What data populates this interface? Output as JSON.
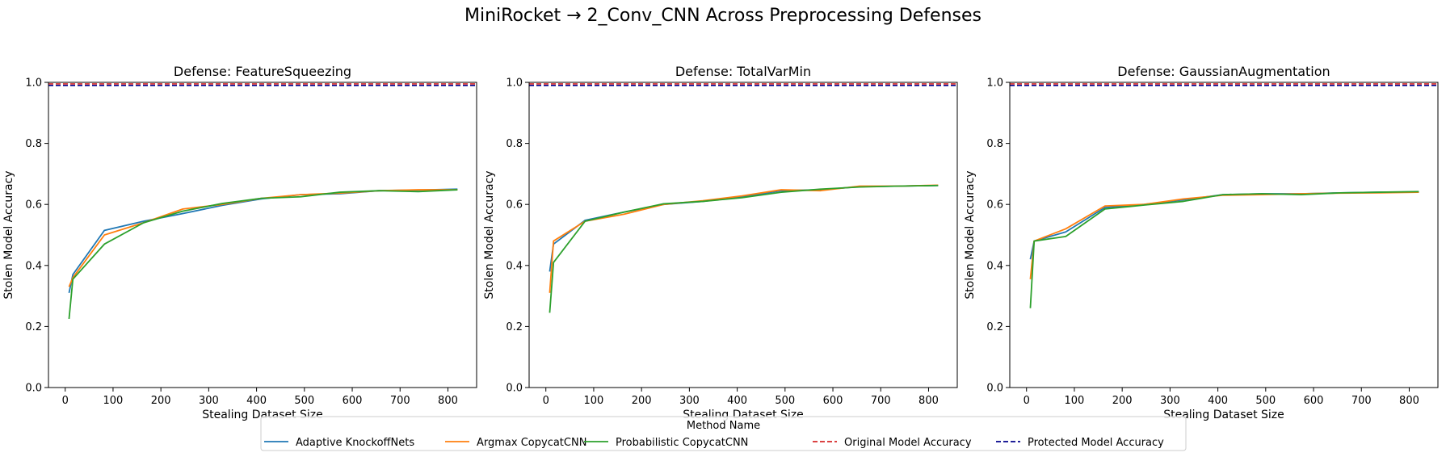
{
  "figure": {
    "title": "MiniRocket → 2_Conv_CNN Across Preprocessing Defenses"
  },
  "colors": {
    "adaptive": "#1f77b4",
    "argmax": "#ff7f0e",
    "probabilistic": "#2ca02c",
    "original": "#d62728",
    "protected": "#00008b"
  },
  "chart_data": [
    {
      "type": "line",
      "title": "Defense: FeatureSqueezing",
      "xlabel": "Stealing Dataset Size",
      "ylabel": "Stolen Model Accuracy",
      "xlim": [
        -35,
        860
      ],
      "ylim": [
        0.0,
        1.0
      ],
      "xticks": [
        0,
        100,
        200,
        300,
        400,
        500,
        600,
        700,
        800
      ],
      "yticks": [
        0.0,
        0.2,
        0.4,
        0.6,
        0.8,
        1.0
      ],
      "grid": false,
      "series": [
        {
          "name": "Adaptive KnockoffNets",
          "x": [
            8,
            16,
            82,
            164,
            246,
            328,
            410,
            492,
            574,
            656,
            738,
            820
          ],
          "y": [
            0.31,
            0.37,
            0.515,
            0.545,
            0.57,
            0.597,
            0.618,
            0.632,
            0.635,
            0.645,
            0.647,
            0.65
          ]
        },
        {
          "name": "Argmax CopycatCNN",
          "x": [
            8,
            16,
            82,
            164,
            246,
            328,
            410,
            492,
            574,
            656,
            738,
            820
          ],
          "y": [
            0.33,
            0.36,
            0.5,
            0.54,
            0.585,
            0.6,
            0.62,
            0.632,
            0.637,
            0.645,
            0.648,
            0.648
          ]
        },
        {
          "name": "Probabilistic CopycatCNN",
          "x": [
            8,
            16,
            82,
            164,
            246,
            328,
            410,
            492,
            574,
            656,
            738,
            820
          ],
          "y": [
            0.225,
            0.355,
            0.47,
            0.54,
            0.578,
            0.603,
            0.62,
            0.625,
            0.64,
            0.645,
            0.642,
            0.648
          ]
        },
        {
          "name": "Original Model Accuracy",
          "style": "dashed",
          "y_const": 0.995
        },
        {
          "name": "Protected Model Accuracy",
          "style": "dashed",
          "y_const": 0.99
        }
      ]
    },
    {
      "type": "line",
      "title": "Defense: TotalVarMin",
      "xlabel": "Stealing Dataset Size",
      "ylabel": "Stolen Model Accuracy",
      "xlim": [
        -35,
        860
      ],
      "ylim": [
        0.0,
        1.0
      ],
      "xticks": [
        0,
        100,
        200,
        300,
        400,
        500,
        600,
        700,
        800
      ],
      "yticks": [
        0.0,
        0.2,
        0.4,
        0.6,
        0.8,
        1.0
      ],
      "grid": false,
      "series": [
        {
          "name": "Adaptive KnockoffNets",
          "x": [
            8,
            16,
            82,
            164,
            246,
            328,
            410,
            492,
            574,
            656,
            738,
            820
          ],
          "y": [
            0.38,
            0.47,
            0.548,
            0.575,
            0.6,
            0.61,
            0.625,
            0.645,
            0.648,
            0.658,
            0.66,
            0.662
          ]
        },
        {
          "name": "Argmax CopycatCNN",
          "x": [
            8,
            16,
            82,
            164,
            246,
            328,
            410,
            492,
            574,
            656,
            738,
            820
          ],
          "y": [
            0.31,
            0.48,
            0.545,
            0.568,
            0.6,
            0.612,
            0.628,
            0.648,
            0.645,
            0.66,
            0.66,
            0.663
          ]
        },
        {
          "name": "Probabilistic CopycatCNN",
          "x": [
            8,
            16,
            82,
            164,
            246,
            328,
            410,
            492,
            574,
            656,
            738,
            820
          ],
          "y": [
            0.245,
            0.41,
            0.545,
            0.575,
            0.602,
            0.61,
            0.622,
            0.64,
            0.65,
            0.657,
            0.66,
            0.662
          ]
        },
        {
          "name": "Original Model Accuracy",
          "style": "dashed",
          "y_const": 0.995
        },
        {
          "name": "Protected Model Accuracy",
          "style": "dashed",
          "y_const": 0.99
        }
      ]
    },
    {
      "type": "line",
      "title": "Defense: GaussianAugmentation",
      "xlabel": "Stealing Dataset Size",
      "ylabel": "Stolen Model Accuracy",
      "xlim": [
        -35,
        860
      ],
      "ylim": [
        0.0,
        1.0
      ],
      "xticks": [
        0,
        100,
        200,
        300,
        400,
        500,
        600,
        700,
        800
      ],
      "yticks": [
        0.0,
        0.2,
        0.4,
        0.6,
        0.8,
        1.0
      ],
      "grid": false,
      "series": [
        {
          "name": "Adaptive KnockoffNets",
          "x": [
            8,
            16,
            82,
            164,
            246,
            328,
            410,
            492,
            574,
            656,
            738,
            820
          ],
          "y": [
            0.42,
            0.48,
            0.51,
            0.59,
            0.6,
            0.615,
            0.632,
            0.635,
            0.635,
            0.638,
            0.64,
            0.64
          ]
        },
        {
          "name": "Argmax CopycatCNN",
          "x": [
            8,
            16,
            82,
            164,
            246,
            328,
            410,
            492,
            574,
            656,
            738,
            820
          ],
          "y": [
            0.355,
            0.48,
            0.52,
            0.595,
            0.6,
            0.618,
            0.63,
            0.632,
            0.635,
            0.637,
            0.638,
            0.64
          ]
        },
        {
          "name": "Probabilistic CopycatCNN",
          "x": [
            8,
            16,
            82,
            164,
            246,
            328,
            410,
            492,
            574,
            656,
            738,
            820
          ],
          "y": [
            0.26,
            0.48,
            0.495,
            0.585,
            0.598,
            0.61,
            0.632,
            0.635,
            0.632,
            0.638,
            0.64,
            0.642
          ]
        },
        {
          "name": "Original Model Accuracy",
          "style": "dashed",
          "y_const": 0.995
        },
        {
          "name": "Protected Model Accuracy",
          "style": "dashed",
          "y_const": 0.99
        }
      ]
    }
  ],
  "legend": {
    "title": "Method Name",
    "placement": "bottom-center",
    "items": [
      {
        "label": "Adaptive KnockoffNets",
        "color": "#1f77b4",
        "style": "solid"
      },
      {
        "label": "Argmax CopycatCNN",
        "color": "#ff7f0e",
        "style": "solid"
      },
      {
        "label": "Probabilistic CopycatCNN",
        "color": "#2ca02c",
        "style": "solid"
      },
      {
        "label": "Original Model Accuracy",
        "color": "#d62728",
        "style": "dashed"
      },
      {
        "label": "Protected Model Accuracy",
        "color": "#00008b",
        "style": "dashed"
      }
    ]
  }
}
